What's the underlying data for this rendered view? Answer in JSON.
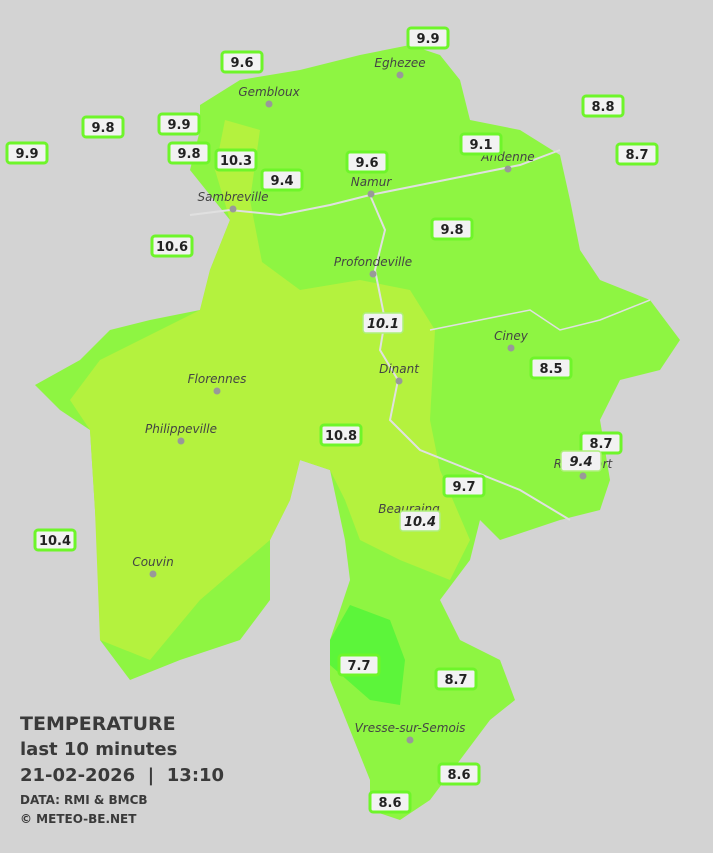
{
  "title": "TEMPERATURE",
  "subtitle": "last 10 minutes",
  "timestamp": "21-02-2026  |  13:10",
  "source": "DATA: RMI & BMCB",
  "copyright": "© METEO-BE.NET",
  "towns": [
    "Eghezee",
    "Gembloux",
    "Andenne",
    "Namur",
    "Sambreville",
    "Profondeville",
    "Ciney",
    "Dinant",
    "Florennes",
    "Philippeville",
    "Rochefort",
    "Beauraing",
    "Couvin",
    "Vresse-sur-Semois"
  ],
  "stations": [
    "9.9",
    "9.6",
    "9.8",
    "9.9",
    "8.8",
    "9.9",
    "9.8",
    "10.3",
    "9.1",
    "8.7",
    "9.6",
    "9.4",
    "9.8",
    "10.6",
    "10.1",
    "8.5",
    "8.7",
    "9.4",
    "10.8",
    "9.7",
    "10.4",
    "10.4",
    "7.7",
    "8.7",
    "8.6",
    "8.6"
  ]
}
